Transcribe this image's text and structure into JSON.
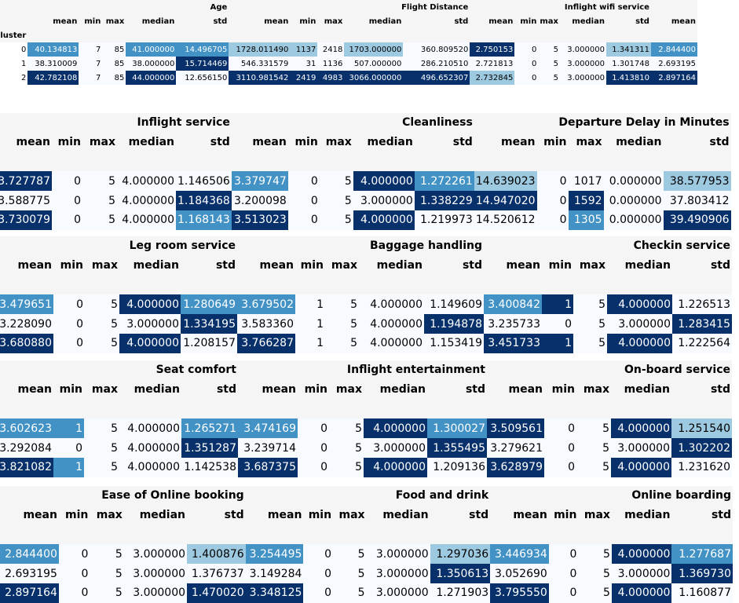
{
  "index_label": "Cluster",
  "row_index": [
    "0",
    "1",
    "2"
  ],
  "stat_headers": [
    "mean",
    "min",
    "max",
    "median",
    "std"
  ],
  "blocks": [
    {
      "groups": [
        "Age",
        "Flight Distance",
        "Inflight wifi service"
      ],
      "lead": [],
      "rows": [
        [
          "40.134813",
          "7",
          "85",
          "41.000000",
          "14.496705",
          "1728.011490",
          "1137",
          "2418",
          "1703.000000",
          "360.809520",
          "2.750153",
          "0",
          "5",
          "3.000000",
          "1.341311",
          "2.844400"
        ],
        [
          "38.310009",
          "7",
          "85",
          "38.000000",
          "15.714469",
          "546.331579",
          "31",
          "1136",
          "507.000000",
          "286.210510",
          "2.721813",
          "0",
          "5",
          "3.000000",
          "1.301748",
          "2.693195"
        ],
        [
          "42.782108",
          "7",
          "85",
          "44.000000",
          "12.656150",
          "3110.981542",
          "2419",
          "4983",
          "3066.000000",
          "496.652307",
          "2.732845",
          "0",
          "5",
          "3.000000",
          "1.413810",
          "2.897164"
        ]
      ]
    },
    {
      "groups": [
        "Inflight service",
        "Cleanliness",
        "Departure Delay in Minutes"
      ],
      "lead": [
        "3.727787",
        "3.588775",
        "3.730079"
      ],
      "rows": [
        [
          "0",
          "5",
          "4.000000",
          "1.146506",
          "3.379747",
          "0",
          "5",
          "4.000000",
          "1.272261",
          "14.639023",
          "0",
          "1017",
          "0.000000",
          "38.577953"
        ],
        [
          "0",
          "5",
          "4.000000",
          "1.184368",
          "3.200098",
          "0",
          "5",
          "3.000000",
          "1.338229",
          "14.947020",
          "0",
          "1592",
          "0.000000",
          "37.803412"
        ],
        [
          "0",
          "5",
          "4.000000",
          "1.168143",
          "3.513023",
          "0",
          "5",
          "4.000000",
          "1.219973",
          "14.520612",
          "0",
          "1305",
          "0.000000",
          "39.490906"
        ]
      ]
    },
    {
      "groups": [
        "Leg room service",
        "Baggage handling",
        "Checkin service"
      ],
      "lead": [
        "3.479651",
        "3.228090",
        "3.680880"
      ],
      "rows": [
        [
          "0",
          "5",
          "4.000000",
          "1.280649",
          "3.679502",
          "1",
          "5",
          "4.000000",
          "1.149609",
          "3.400842",
          "1",
          "5",
          "4.000000",
          "1.226513"
        ],
        [
          "0",
          "5",
          "3.000000",
          "1.334195",
          "3.583360",
          "1",
          "5",
          "4.000000",
          "1.194878",
          "3.235733",
          "0",
          "5",
          "3.000000",
          "1.283415"
        ],
        [
          "0",
          "5",
          "4.000000",
          "1.208157",
          "3.766287",
          "1",
          "5",
          "4.000000",
          "1.153419",
          "3.451733",
          "1",
          "5",
          "4.000000",
          "1.222564"
        ]
      ]
    },
    {
      "groups": [
        "Seat comfort",
        "Inflight entertainment",
        "On-board service"
      ],
      "lead": [
        "3.602623",
        "3.292084",
        "3.821082"
      ],
      "rows": [
        [
          "1",
          "5",
          "4.000000",
          "1.265271",
          "3.474169",
          "0",
          "5",
          "4.000000",
          "1.300027",
          "3.509561",
          "0",
          "5",
          "4.000000",
          "1.251540"
        ],
        [
          "0",
          "5",
          "4.000000",
          "1.351287",
          "3.239714",
          "0",
          "5",
          "3.000000",
          "1.355495",
          "3.279621",
          "0",
          "5",
          "3.000000",
          "1.302202"
        ],
        [
          "1",
          "5",
          "4.000000",
          "1.142538",
          "3.687375",
          "0",
          "5",
          "4.000000",
          "1.209136",
          "3.628979",
          "0",
          "5",
          "4.000000",
          "1.231620"
        ]
      ]
    },
    {
      "groups": [
        "Ease of Online booking",
        "Food and drink",
        "Online boarding"
      ],
      "lead": [
        "2.844400",
        "2.693195",
        "2.897164"
      ],
      "rows": [
        [
          "0",
          "5",
          "3.000000",
          "1.400876",
          "3.254495",
          "0",
          "5",
          "3.000000",
          "1.297036",
          "3.446934",
          "0",
          "5",
          "4.000000",
          "1.277687"
        ],
        [
          "0",
          "5",
          "3.000000",
          "1.376737",
          "3.149284",
          "0",
          "5",
          "3.000000",
          "1.350613",
          "3.052690",
          "0",
          "5",
          "3.000000",
          "1.369730"
        ],
        [
          "0",
          "5",
          "3.000000",
          "1.470020",
          "3.348125",
          "0",
          "5",
          "3.000000",
          "1.271903",
          "3.795550",
          "0",
          "5",
          "4.000000",
          "1.160877"
        ]
      ]
    }
  ],
  "colors": {
    "navy": "#08306b",
    "mid": "#4292c6",
    "light": "#9ecae1",
    "pale": "#f7fbff",
    "header_bg": "#f5f5f5"
  }
}
